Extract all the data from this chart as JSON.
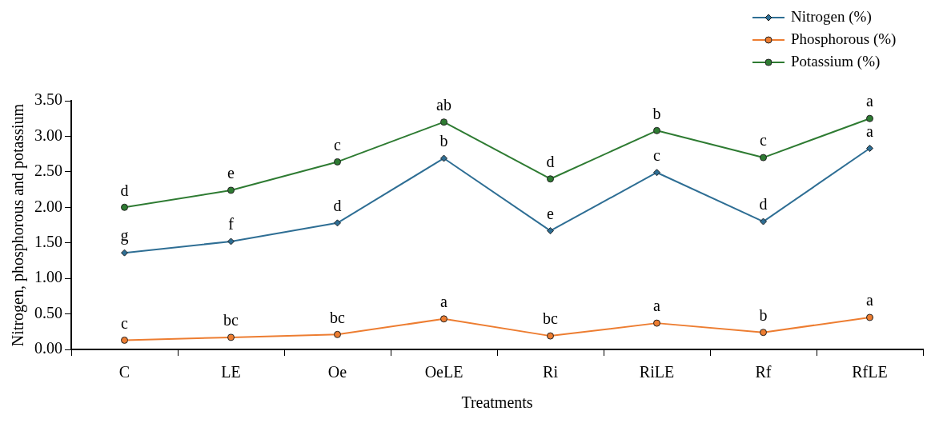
{
  "chart_data": {
    "type": "line",
    "xlabel": "Treatments",
    "ylabel": "Nitrogen, phosphorous and potassium",
    "categories": [
      "C",
      "LE",
      "Oe",
      "OeLE",
      "Ri",
      "RiLE",
      "Rf",
      "RfLE"
    ],
    "series": [
      {
        "name": "Nitrogen (%)",
        "color": "#2e6e94",
        "marker": "diamond",
        "values": [
          1.36,
          1.52,
          1.78,
          2.69,
          1.67,
          2.49,
          1.8,
          2.83
        ]
      },
      {
        "name": "Phosphorous (%)",
        "color": "#ed7d31",
        "marker": "circle",
        "values": [
          0.13,
          0.17,
          0.21,
          0.43,
          0.19,
          0.37,
          0.24,
          0.45
        ]
      },
      {
        "name": "Potassium (%)",
        "color": "#2e7b32",
        "marker": "circle",
        "values": [
          2.0,
          2.24,
          2.64,
          3.2,
          2.4,
          3.08,
          2.7,
          3.25
        ]
      }
    ],
    "ylim": [
      0,
      3.5
    ],
    "yticks": [
      {
        "value": 0,
        "label": "0.00"
      },
      {
        "value": 0.5,
        "label": "0.50"
      },
      {
        "value": 1,
        "label": "1.00"
      },
      {
        "value": 1.5,
        "label": "1.50"
      },
      {
        "value": 2,
        "label": "2.00"
      },
      {
        "value": 2.5,
        "label": "2.50"
      },
      {
        "value": 3,
        "label": "3.00"
      },
      {
        "value": 3.5,
        "label": "3.50"
      }
    ],
    "grid": false,
    "legend": "top right",
    "annotations": [
      {
        "text": "g",
        "x": "C",
        "y": 1.36
      },
      {
        "text": "f",
        "x": "LE",
        "y": 1.52
      },
      {
        "text": "d",
        "x": "Oe",
        "y": 1.78
      },
      {
        "text": "b",
        "x": "OeLE",
        "y": 2.69
      },
      {
        "text": "e",
        "x": "Ri",
        "y": 1.67
      },
      {
        "text": "c",
        "x": "RiLE",
        "y": 2.49
      },
      {
        "text": "d",
        "x": "Rf",
        "y": 1.8
      },
      {
        "text": "a",
        "x": "RfLE",
        "y": 2.83
      },
      {
        "text": "c",
        "x": "C",
        "y": 0.13
      },
      {
        "text": "bc",
        "x": "LE",
        "y": 0.17
      },
      {
        "text": "bc",
        "x": "Oe",
        "y": 0.21
      },
      {
        "text": "a",
        "x": "OeLE",
        "y": 0.43
      },
      {
        "text": "bc",
        "x": "Ri",
        "y": 0.19
      },
      {
        "text": "a",
        "x": "RiLE",
        "y": 0.37
      },
      {
        "text": "b",
        "x": "Rf",
        "y": 0.24
      },
      {
        "text": "a",
        "x": "RfLE",
        "y": 0.45
      },
      {
        "text": "d",
        "x": "C",
        "y": 2.0
      },
      {
        "text": "e",
        "x": "LE",
        "y": 2.24
      },
      {
        "text": "c",
        "x": "Oe",
        "y": 2.64
      },
      {
        "text": "ab",
        "x": "OeLE",
        "y": 3.2
      },
      {
        "text": "d",
        "x": "Ri",
        "y": 2.4
      },
      {
        "text": "b",
        "x": "RiLE",
        "y": 3.08
      },
      {
        "text": "c",
        "x": "Rf",
        "y": 2.7
      },
      {
        "text": "a",
        "x": "RfLE",
        "y": 3.25
      }
    ]
  }
}
